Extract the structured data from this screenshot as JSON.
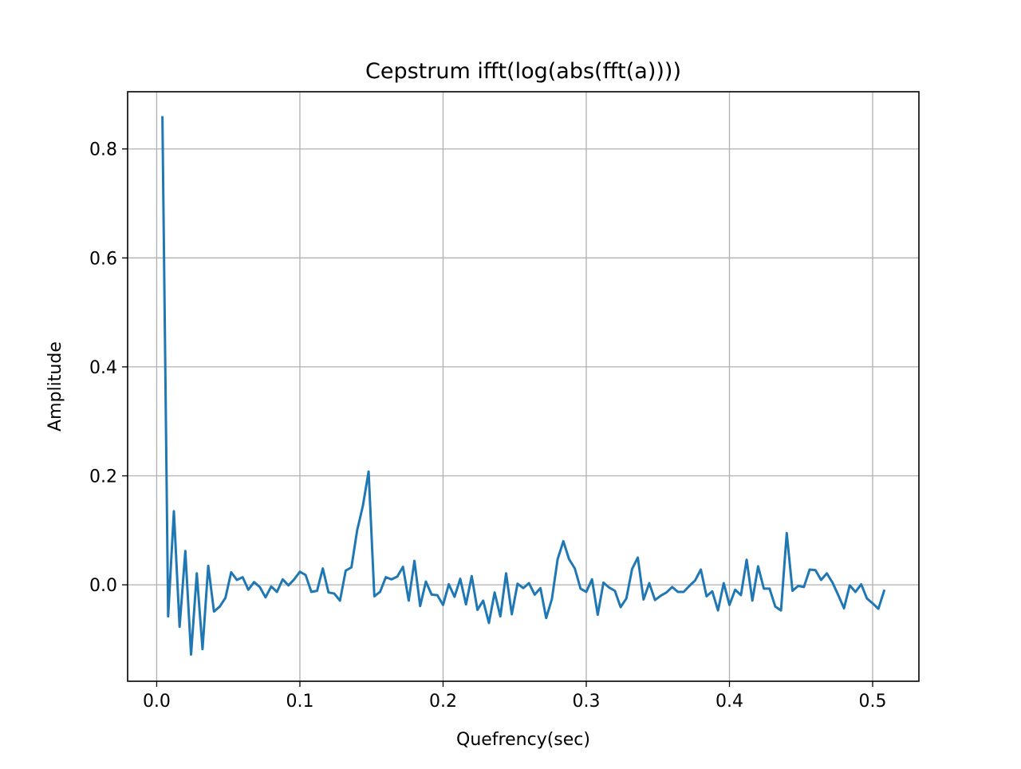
{
  "chart_data": {
    "type": "line",
    "title": "Cepstrum  ifft(log(abs(fft(a))))",
    "xlabel": "Quefrency(sec)",
    "ylabel": "Amplitude",
    "xlim": [
      -0.0203,
      0.5323
    ],
    "ylim": [
      -0.177,
      0.905
    ],
    "x_ticks": [
      0.0,
      0.1,
      0.2,
      0.3,
      0.4,
      0.5
    ],
    "x_tick_labels": [
      "0.0",
      "0.1",
      "0.2",
      "0.3",
      "0.4",
      "0.5"
    ],
    "y_ticks": [
      0.0,
      0.2,
      0.4,
      0.6,
      0.8
    ],
    "y_tick_labels": [
      "0.0",
      "0.2",
      "0.4",
      "0.6",
      "0.8"
    ],
    "grid": true,
    "series": [
      {
        "color": "#1f77b4",
        "x": [
          0.004,
          0.008,
          0.012,
          0.016,
          0.02,
          0.024,
          0.028,
          0.032,
          0.036,
          0.04,
          0.044,
          0.048,
          0.052,
          0.056,
          0.06,
          0.064,
          0.068,
          0.072,
          0.076,
          0.08,
          0.084,
          0.088,
          0.092,
          0.096,
          0.1,
          0.104,
          0.108,
          0.112,
          0.116,
          0.12,
          0.124,
          0.128,
          0.132,
          0.136,
          0.14,
          0.144,
          0.148,
          0.152,
          0.156,
          0.16,
          0.164,
          0.168,
          0.172,
          0.176,
          0.18,
          0.184,
          0.188,
          0.192,
          0.196,
          0.2,
          0.204,
          0.208,
          0.212,
          0.216,
          0.22,
          0.224,
          0.228,
          0.232,
          0.236,
          0.24,
          0.244,
          0.248,
          0.252,
          0.256,
          0.26,
          0.264,
          0.268,
          0.272,
          0.276,
          0.28,
          0.284,
          0.288,
          0.292,
          0.296,
          0.3,
          0.304,
          0.308,
          0.312,
          0.316,
          0.32,
          0.324,
          0.328,
          0.332,
          0.336,
          0.34,
          0.344,
          0.348,
          0.352,
          0.356,
          0.36,
          0.364,
          0.368,
          0.372,
          0.376,
          0.38,
          0.384,
          0.388,
          0.392,
          0.396,
          0.4,
          0.404,
          0.408,
          0.412,
          0.416,
          0.42,
          0.424,
          0.428,
          0.432,
          0.436,
          0.44,
          0.444,
          0.448,
          0.452,
          0.456,
          0.46,
          0.464,
          0.468,
          0.472,
          0.476,
          0.48,
          0.484,
          0.488,
          0.492,
          0.496,
          0.5,
          0.504,
          0.508
        ],
        "y": [
          0.858,
          -0.058,
          0.135,
          -0.077,
          0.062,
          -0.128,
          0.021,
          -0.118,
          0.035,
          -0.049,
          -0.04,
          -0.024,
          0.023,
          0.009,
          0.014,
          -0.009,
          0.005,
          -0.004,
          -0.023,
          -0.003,
          -0.013,
          0.01,
          -0.001,
          0.01,
          0.024,
          0.018,
          -0.013,
          -0.011,
          0.03,
          -0.014,
          -0.016,
          -0.029,
          0.026,
          0.032,
          0.1,
          0.145,
          0.208,
          -0.021,
          -0.013,
          0.014,
          0.01,
          0.015,
          0.033,
          -0.029,
          0.044,
          -0.039,
          0.006,
          -0.018,
          -0.019,
          -0.037,
          0.001,
          -0.022,
          0.011,
          -0.036,
          0.016,
          -0.046,
          -0.029,
          -0.07,
          -0.014,
          -0.058,
          0.021,
          -0.054,
          0.002,
          -0.006,
          0.003,
          -0.018,
          -0.006,
          -0.061,
          -0.026,
          0.047,
          0.08,
          0.047,
          0.03,
          -0.007,
          -0.013,
          0.01,
          -0.055,
          0.004,
          -0.005,
          -0.011,
          -0.041,
          -0.025,
          0.029,
          0.05,
          -0.027,
          0.003,
          -0.028,
          -0.02,
          -0.014,
          -0.004,
          -0.013,
          -0.013,
          -0.002,
          0.008,
          0.028,
          -0.021,
          -0.012,
          -0.047,
          0.003,
          -0.037,
          -0.009,
          -0.019,
          0.046,
          -0.029,
          0.034,
          -0.007,
          -0.007,
          -0.04,
          -0.047,
          0.095,
          -0.011,
          -0.002,
          -0.004,
          0.028,
          0.027,
          0.009,
          0.021,
          0.004,
          -0.019,
          -0.043,
          -0.001,
          -0.013,
          0.001,
          -0.025,
          -0.034,
          -0.044,
          -0.011
        ]
      }
    ]
  }
}
